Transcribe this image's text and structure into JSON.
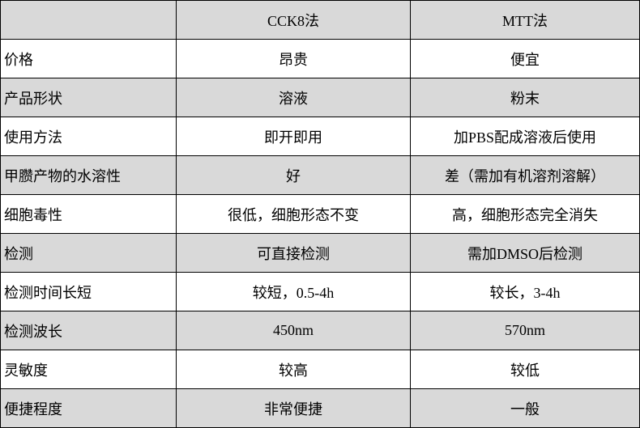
{
  "colors": {
    "shaded_row": "#d9d9d9",
    "border": "#000000"
  },
  "headers": [
    "",
    "CCK8法",
    "MTT法"
  ],
  "rows": [
    [
      "价格",
      "昂贵",
      "便宜"
    ],
    [
      "产品形状",
      "溶液",
      "粉末"
    ],
    [
      "使用方法",
      "即开即用",
      "加PBS配成溶液后使用"
    ],
    [
      "甲臜产物的水溶性",
      "好",
      "差（需加有机溶剂溶解）"
    ],
    [
      "细胞毒性",
      "很低，细胞形态不变",
      "高，细胞形态完全消失"
    ],
    [
      "检测",
      "可直接检测",
      "需加DMSO后检测"
    ],
    [
      "检测时间长短",
      "较短，0.5-4h",
      "较长，3-4h"
    ],
    [
      "检测波长",
      "450nm",
      "570nm"
    ],
    [
      "灵敏度",
      "较高",
      "较低"
    ],
    [
      "便捷程度",
      "非常便捷",
      "一般"
    ]
  ]
}
